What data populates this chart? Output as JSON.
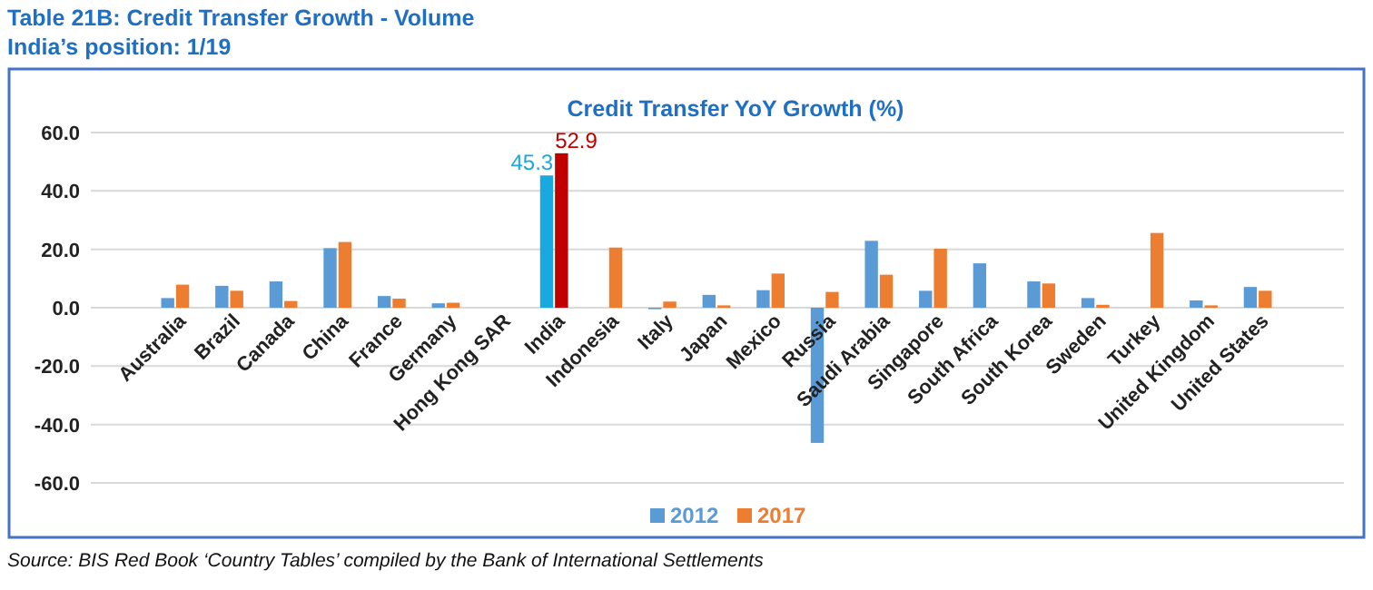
{
  "chart_data": {
    "type": "bar",
    "title": "Table 21B: Credit Transfer Growth - Volume",
    "subtitle": "India’s position: 1/19",
    "annotations": [
      "Credit Transfer YoY Growth (%)",
      "Source: BIS Red Book ‘Country Tables’ compiled by the Bank of International Settlements"
    ],
    "categories": [
      "Australia",
      "Brazil",
      "Canada",
      "China",
      "France",
      "Germany",
      "Hong Kong SAR",
      "India",
      "Indonesia",
      "Italy",
      "Japan",
      "Mexico",
      "Russia",
      "Saudi Arabia",
      "Singapore",
      "South Africa",
      "South Korea",
      "Sweden",
      "Turkey",
      "United Kingdom",
      "United States"
    ],
    "series": [
      {
        "name": "2012",
        "color": "#5b9bd5",
        "colors": [
          "#5b9bd5",
          "#5b9bd5",
          "#5b9bd5",
          "#5b9bd5",
          "#5b9bd5",
          "#5b9bd5",
          null,
          "#1aa8e0",
          null,
          "#5b9bd5",
          "#5b9bd5",
          "#5b9bd5",
          "#5b9bd5",
          "#5b9bd5",
          "#5b9bd5",
          "#5b9bd5",
          "#5b9bd5",
          "#5b9bd5",
          null,
          "#5b9bd5",
          "#5b9bd5"
        ],
        "values": [
          3.3,
          7.5,
          9.0,
          20.4,
          4.0,
          1.5,
          null,
          45.3,
          null,
          -0.5,
          4.4,
          6.0,
          -46.3,
          22.9,
          5.8,
          15.2,
          9.0,
          3.3,
          null,
          2.5,
          7.1
        ],
        "value_labels": [
          null,
          null,
          null,
          null,
          null,
          null,
          null,
          "45.3",
          null,
          null,
          null,
          null,
          null,
          null,
          null,
          null,
          null,
          null,
          null,
          null,
          null
        ]
      },
      {
        "name": "2017",
        "color": "#ed7d31",
        "colors": [
          "#ed7d31",
          "#ed7d31",
          "#ed7d31",
          "#ed7d31",
          "#ed7d31",
          "#ed7d31",
          null,
          "#c00000",
          "#ed7d31",
          "#ed7d31",
          "#ed7d31",
          "#ed7d31",
          "#ed7d31",
          "#ed7d31",
          "#ed7d31",
          null,
          "#ed7d31",
          "#ed7d31",
          "#ed7d31",
          "#ed7d31",
          "#ed7d31"
        ],
        "values": [
          7.9,
          5.8,
          2.3,
          22.5,
          3.1,
          1.7,
          null,
          52.9,
          20.6,
          2.1,
          0.8,
          11.7,
          5.4,
          11.3,
          20.2,
          null,
          8.3,
          1.0,
          25.6,
          0.8,
          5.8
        ],
        "value_labels": [
          null,
          null,
          null,
          null,
          null,
          null,
          null,
          "52.9",
          null,
          null,
          null,
          null,
          null,
          null,
          null,
          null,
          null,
          null,
          null,
          null,
          null
        ]
      }
    ],
    "ylim": [
      -60,
      60
    ],
    "yticks": [
      {
        "value": -60,
        "label": "-60.0"
      },
      {
        "value": -40,
        "label": "-40.0"
      },
      {
        "value": -20,
        "label": "-20.0"
      },
      {
        "value": 0,
        "label": "0.0"
      },
      {
        "value": 20,
        "label": "20.0"
      },
      {
        "value": 40,
        "label": "40.0"
      },
      {
        "value": 60,
        "label": "60.0"
      }
    ],
    "grid": "y",
    "legend": "bottom"
  }
}
